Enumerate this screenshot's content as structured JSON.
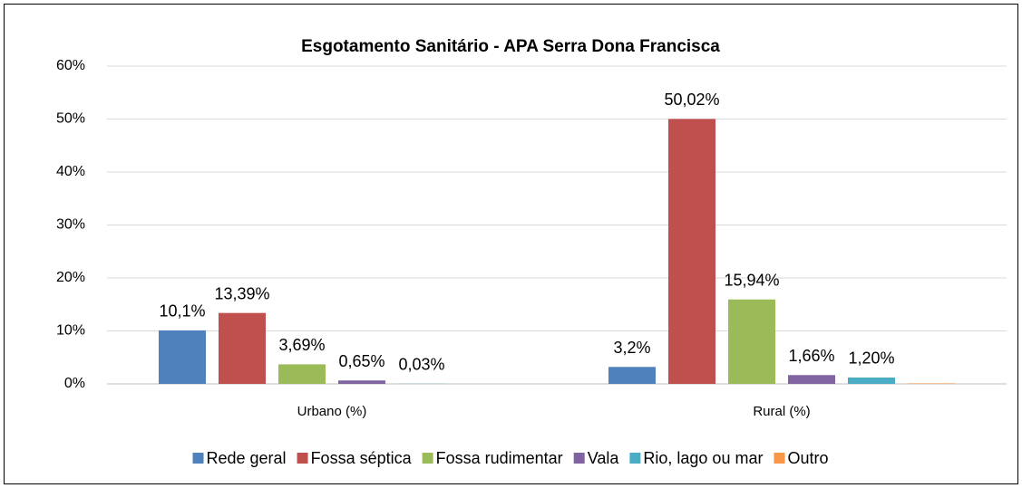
{
  "chart_data": {
    "type": "bar",
    "title": "Esgotamento Sanitário - APA Serra Dona Francisca",
    "categories": [
      "Urbano (%)",
      "Rural (%)"
    ],
    "series": [
      {
        "name": "Rede geral",
        "color": "#4f81bd",
        "values": [
          10.1,
          3.2
        ],
        "value_labels": [
          "10,1%",
          "3,2%"
        ]
      },
      {
        "name": "Fossa séptica",
        "color": "#c0504d",
        "values": [
          13.39,
          50.02
        ],
        "value_labels": [
          "13,39%",
          "50,02%"
        ]
      },
      {
        "name": "Fossa rudimentar",
        "color": "#9bbb59",
        "values": [
          3.69,
          15.94
        ],
        "value_labels": [
          "3,69%",
          "15,94%"
        ]
      },
      {
        "name": "Vala",
        "color": "#8064a2",
        "values": [
          0.65,
          1.66
        ],
        "value_labels": [
          "0,65%",
          "1,66%"
        ]
      },
      {
        "name": "Rio, lago ou mar",
        "color": "#4bacc6",
        "values": [
          0.03,
          1.2
        ],
        "value_labels": [
          "0,03%",
          "1,20%"
        ]
      },
      {
        "name": "Outro",
        "color": "#f79646",
        "values": [
          null,
          0.1
        ],
        "value_labels": [
          null,
          null
        ]
      }
    ],
    "ylim": [
      0,
      60
    ],
    "yticks": [
      {
        "value": 0,
        "label": "0%"
      },
      {
        "value": 10,
        "label": "10%"
      },
      {
        "value": 20,
        "label": "20%"
      },
      {
        "value": 30,
        "label": "30%"
      },
      {
        "value": 40,
        "label": "40%"
      },
      {
        "value": 50,
        "label": "50%"
      },
      {
        "value": 60,
        "label": "60%"
      }
    ],
    "grid": true,
    "legend": "bottom"
  }
}
